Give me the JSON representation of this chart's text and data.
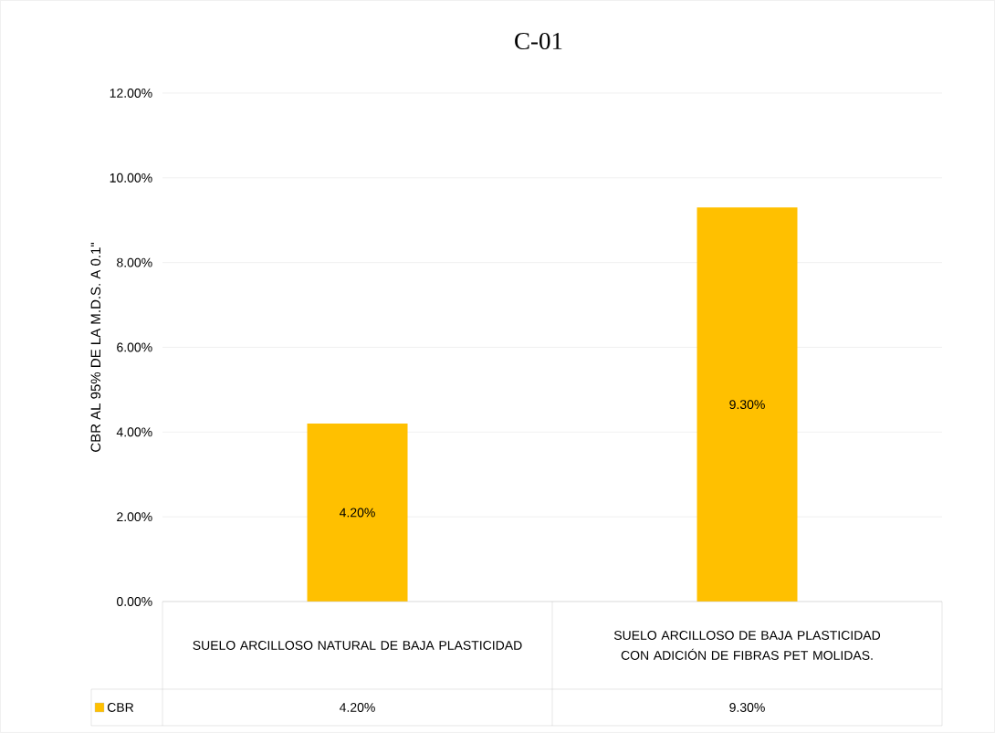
{
  "chart_data": {
    "type": "bar",
    "title": "C-01",
    "ylabel": "CBR AL 95% DE LA M.D.S. A 0.1\"",
    "categories": [
      "SUELO ARCILLOSO NATURAL DE BAJA PLASTICIDAD",
      "SUELO ARCILLOSO DE BAJA PLASTICIDAD CON ADICIÓN DE FIBRAS PET MOLIDAS."
    ],
    "series": [
      {
        "name": "CBR",
        "color": "#ffc000",
        "values": [
          4.2,
          9.3
        ],
        "value_labels": [
          "4.20%",
          "9.30%"
        ]
      }
    ],
    "ylim": [
      0,
      12
    ],
    "yticks": [
      {
        "value": 0,
        "label": "0.00%"
      },
      {
        "value": 2,
        "label": "2.00%"
      },
      {
        "value": 4,
        "label": "4.00%"
      },
      {
        "value": 6,
        "label": "6.00%"
      },
      {
        "value": 8,
        "label": "8.00%"
      },
      {
        "value": 10,
        "label": "10.00%"
      },
      {
        "value": 12,
        "label": "12.00%"
      }
    ],
    "grid": "y",
    "legend": "bottom left"
  }
}
